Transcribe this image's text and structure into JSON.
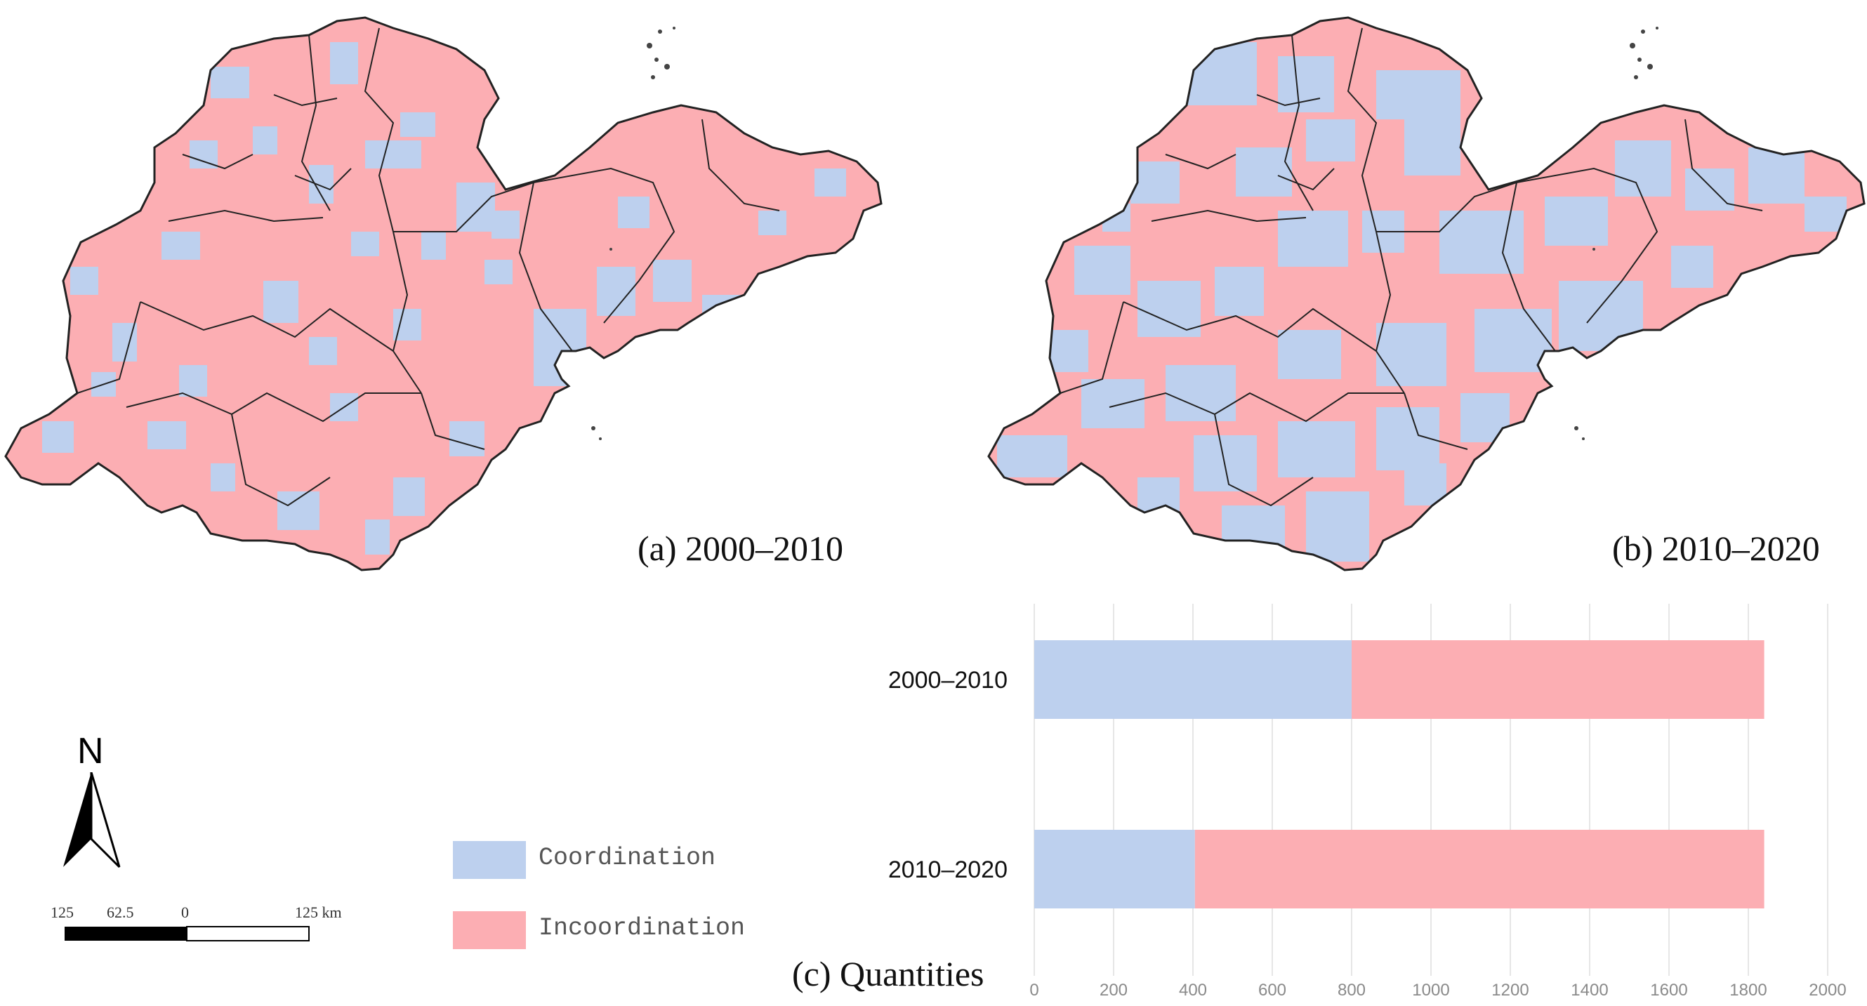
{
  "maps": [
    {
      "caption": "(a) 2000–2010",
      "share_coordination": 0.43
    },
    {
      "caption": "(b) 2010–2020",
      "share_coordination": 0.22
    }
  ],
  "colors": {
    "coordination": "#bdd0ee",
    "incoordination": "#fcaeb3",
    "boundary": "#222222",
    "grid": "#e6e6e6"
  },
  "legend": {
    "items": [
      {
        "label": "Coordination",
        "color": "#bdd0ee"
      },
      {
        "label": "Incoordination",
        "color": "#fcaeb3"
      }
    ]
  },
  "north_arrow": {
    "label": "N",
    "icon": "north-arrow-icon"
  },
  "scale_bar": {
    "labels": [
      "125",
      "62.5",
      "0",
      "125 km"
    ]
  },
  "chart_caption": "(c) Quantities",
  "chart_data": {
    "type": "bar",
    "orientation": "horizontal",
    "stacked": true,
    "categories": [
      "2000–2010",
      "2010–2020"
    ],
    "series": [
      {
        "name": "Coordination",
        "values": [
          800,
          405
        ],
        "color": "#bdd0ee"
      },
      {
        "name": "Incoordination",
        "values": [
          1040,
          1435
        ],
        "color": "#fcaeb3"
      }
    ],
    "xlim": [
      0,
      2000
    ],
    "xticks": [
      0,
      200,
      400,
      600,
      800,
      1000,
      1200,
      1400,
      1600,
      1800,
      2000
    ],
    "title": "",
    "xlabel": "",
    "ylabel": "",
    "grid": true,
    "legend_position": "left"
  }
}
